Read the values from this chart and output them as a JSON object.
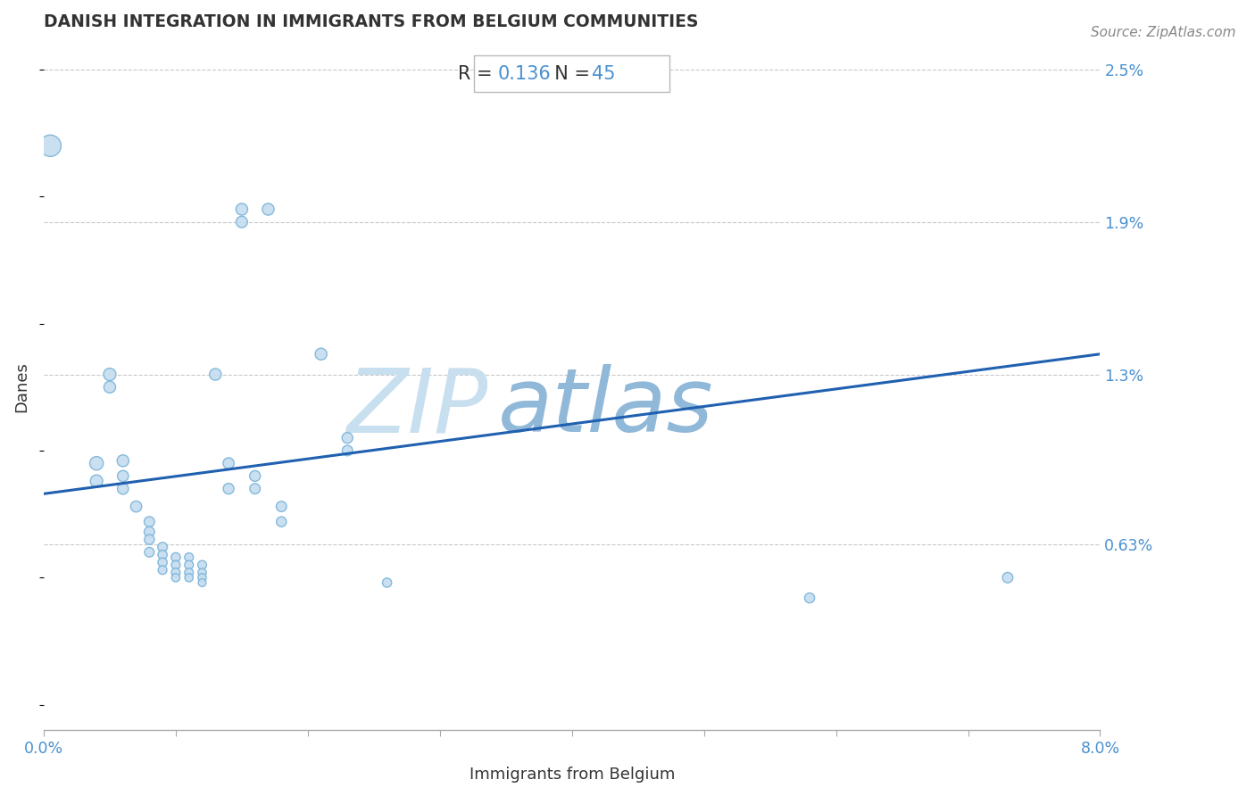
{
  "title": "DANISH INTEGRATION IN IMMIGRANTS FROM BELGIUM COMMUNITIES",
  "source": "Source: ZipAtlas.com",
  "xlabel": "Immigrants from Belgium",
  "ylabel": "Danes",
  "R": 0.136,
  "N": 45,
  "xlim": [
    0.0,
    0.08
  ],
  "ylim": [
    -0.001,
    0.026
  ],
  "ytick_labels": [
    "2.5%",
    "1.9%",
    "1.3%",
    "0.63%"
  ],
  "ytick_vals": [
    0.025,
    0.019,
    0.013,
    0.0063
  ],
  "trend_x": [
    0.0,
    0.08
  ],
  "trend_y_start": 0.0083,
  "trend_y_end": 0.0138,
  "dot_color": "#c5ddf0",
  "dot_edge_color": "#7ab3d8",
  "trend_color": "#2060b0",
  "grid_color": "#c8c8c8",
  "title_color": "#333333",
  "xlabel_color": "#333333",
  "ylabel_color": "#333333",
  "tick_label_color": "#4a90d0",
  "annotation_R_color": "#333333",
  "annotation_val_color": "#4a90d0",
  "watermark_ZIP_color": "#c8dff0",
  "watermark_atlas_color": "#90b8d8",
  "source_color": "#888888",
  "scatter_data": [
    [
      0.0005,
      0.022
    ],
    [
      0.004,
      0.0095
    ],
    [
      0.004,
      0.0088
    ],
    [
      0.005,
      0.013
    ],
    [
      0.005,
      0.0125
    ],
    [
      0.006,
      0.0096
    ],
    [
      0.006,
      0.009
    ],
    [
      0.006,
      0.0085
    ],
    [
      0.007,
      0.0078
    ],
    [
      0.008,
      0.0072
    ],
    [
      0.008,
      0.0068
    ],
    [
      0.008,
      0.0065
    ],
    [
      0.008,
      0.006
    ],
    [
      0.009,
      0.0062
    ],
    [
      0.009,
      0.0059
    ],
    [
      0.009,
      0.0056
    ],
    [
      0.009,
      0.0053
    ],
    [
      0.01,
      0.0058
    ],
    [
      0.01,
      0.0055
    ],
    [
      0.01,
      0.0052
    ],
    [
      0.01,
      0.005
    ],
    [
      0.011,
      0.0058
    ],
    [
      0.011,
      0.0055
    ],
    [
      0.011,
      0.0052
    ],
    [
      0.011,
      0.005
    ],
    [
      0.012,
      0.0055
    ],
    [
      0.012,
      0.0052
    ],
    [
      0.012,
      0.005
    ],
    [
      0.012,
      0.0048
    ],
    [
      0.013,
      0.013
    ],
    [
      0.014,
      0.0095
    ],
    [
      0.014,
      0.0085
    ],
    [
      0.015,
      0.0195
    ],
    [
      0.015,
      0.019
    ],
    [
      0.016,
      0.009
    ],
    [
      0.016,
      0.0085
    ],
    [
      0.017,
      0.0195
    ],
    [
      0.018,
      0.0078
    ],
    [
      0.018,
      0.0072
    ],
    [
      0.021,
      0.0138
    ],
    [
      0.023,
      0.0105
    ],
    [
      0.023,
      0.01
    ],
    [
      0.026,
      0.0048
    ],
    [
      0.058,
      0.0042
    ],
    [
      0.073,
      0.005
    ]
  ],
  "scatter_sizes_raw": [
    300,
    120,
    100,
    100,
    90,
    90,
    80,
    80,
    80,
    70,
    70,
    65,
    60,
    60,
    55,
    55,
    50,
    55,
    50,
    50,
    45,
    50,
    50,
    50,
    45,
    50,
    45,
    45,
    40,
    90,
    80,
    75,
    90,
    85,
    75,
    70,
    90,
    70,
    65,
    90,
    75,
    70,
    55,
    65,
    70
  ]
}
